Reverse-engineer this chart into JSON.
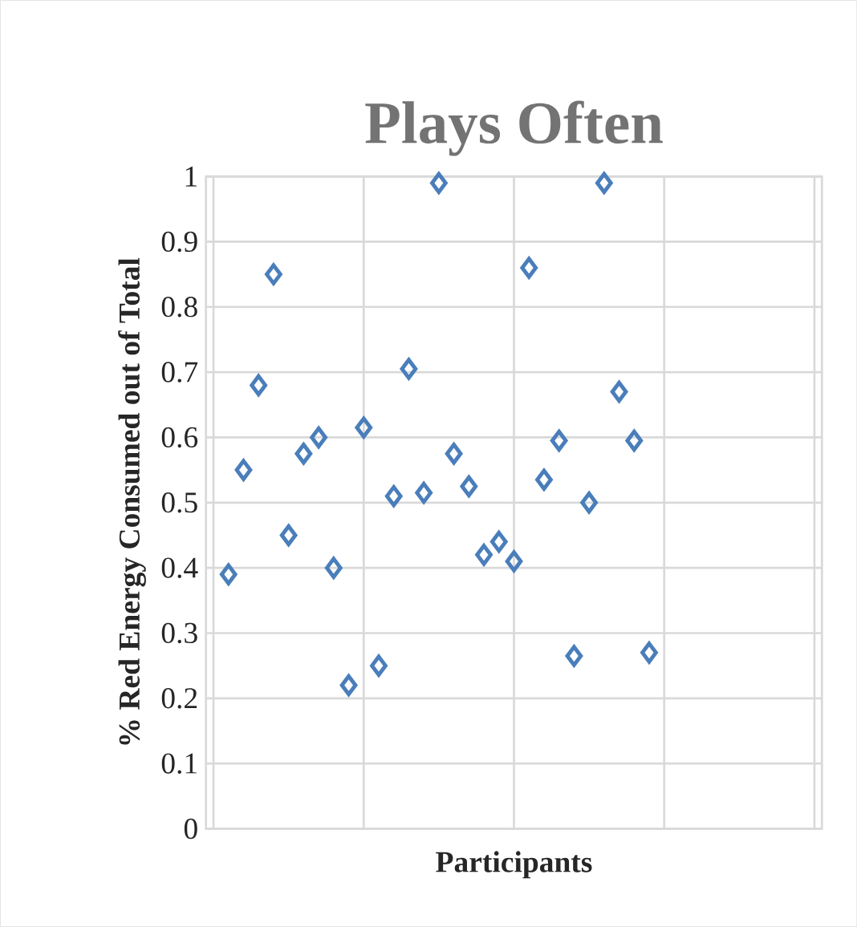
{
  "chart_data": {
    "type": "scatter",
    "title": "Plays Often",
    "xlabel": "Participants",
    "ylabel": "% Red Energy Consumed out of Total",
    "categories": [
      null,
      null,
      null,
      null,
      null,
      null,
      null,
      null,
      null,
      null,
      null,
      null,
      null,
      null,
      null,
      null,
      null,
      null,
      null,
      null,
      null,
      null,
      null,
      null,
      null,
      null,
      null,
      null,
      null,
      null,
      null,
      null,
      null,
      null,
      null,
      null,
      null,
      null,
      null,
      null,
      null
    ],
    "series": [
      {
        "color": "#4a7ebb",
        "values": [
          null,
          0.39,
          0.55,
          0.68,
          0.85,
          0.45,
          0.575,
          0.6,
          0.4,
          0.22,
          0.615,
          0.25,
          0.51,
          0.705,
          0.515,
          0.99,
          0.575,
          0.525,
          0.42,
          0.44,
          0.41,
          0.86,
          0.535,
          0.595,
          0.265,
          0.5,
          0.99,
          0.67,
          0.595,
          0.27,
          null,
          null,
          null,
          null,
          null,
          null,
          null,
          null,
          null,
          null,
          null
        ]
      }
    ],
    "ylim": [
      0,
      1
    ],
    "yticks": [
      0,
      0.1,
      0.2,
      0.3,
      0.4,
      0.5,
      0.6,
      0.7,
      0.8,
      0.9,
      1
    ],
    "grid": true,
    "marker": "diamond",
    "tick_labels": "y"
  }
}
